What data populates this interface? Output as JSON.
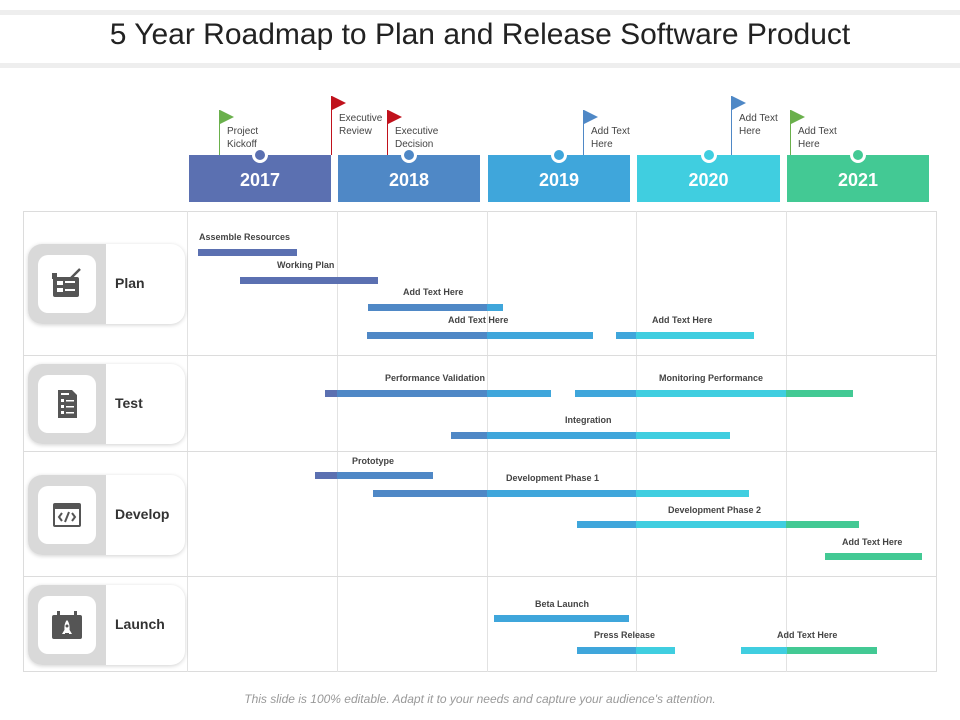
{
  "title": "5 Year Roadmap to Plan and Release Software Product",
  "colors": {
    "2017": "#5b70b1",
    "2018": "#4f88c6",
    "2019": "#3fa6db",
    "2020": "#40cee0",
    "2021": "#43c994",
    "flag_green": "#6ab04c",
    "flag_red": "#c0121c",
    "flag_blue": "#4f88c6"
  },
  "years": [
    "2017",
    "2018",
    "2019",
    "2020",
    "2021"
  ],
  "milestones": [
    {
      "line1": "Project",
      "line2": "Kickoff",
      "color": "flag_green"
    },
    {
      "line1": "Executive",
      "line2": "Review",
      "color": "flag_red"
    },
    {
      "line1": "Executive",
      "line2": "Decision",
      "color": "flag_red"
    },
    {
      "line1": "Add Text",
      "line2": "Here",
      "color": "flag_blue"
    },
    {
      "line1": "Add Text",
      "line2": "Here",
      "color": "flag_blue"
    },
    {
      "line1": "Add Text",
      "line2": "Here",
      "color": "flag_green"
    }
  ],
  "categories": [
    {
      "label": "Plan",
      "icon": "planning-board-icon"
    },
    {
      "label": "Test",
      "icon": "checklist-document-icon"
    },
    {
      "label": "Develop",
      "icon": "code-window-icon"
    },
    {
      "label": "Launch",
      "icon": "rocket-calendar-icon"
    }
  ],
  "tasks": [
    {
      "category": "Plan",
      "label": "Assemble Resources",
      "start": "2017-01",
      "end": "2017-08"
    },
    {
      "category": "Plan",
      "label": "Working Plan",
      "start": "2017-05",
      "end": "2018-03"
    },
    {
      "category": "Plan",
      "label": "Add Text Here",
      "start": "2018-03",
      "end": "2019-01"
    },
    {
      "category": "Plan",
      "label": "Add Text Here",
      "start": "2018-03",
      "end": "2019-08"
    },
    {
      "category": "Plan",
      "label": "Add Text Here",
      "start": "2019-10",
      "end": "2020-10"
    },
    {
      "category": "Test",
      "label": "Performance Validation",
      "start": "2016-12",
      "end": "2019-06"
    },
    {
      "category": "Test",
      "label": "Monitoring Performance",
      "start": "2019-08",
      "end": "2021-06"
    },
    {
      "category": "Test",
      "label": "Integration",
      "start": "2018-09",
      "end": "2020-08"
    },
    {
      "category": "Develop",
      "label": "Prototype",
      "start": "2016-11",
      "end": "2017-09"
    },
    {
      "category": "Develop",
      "label": "Development Phase 1",
      "start": "2018-04",
      "end": "2020-10"
    },
    {
      "category": "Develop",
      "label": "Development Phase 2",
      "start": "2019-08",
      "end": "2021-07"
    },
    {
      "category": "Develop",
      "label": "Add Text Here",
      "start": "2021-04",
      "end": "2022-01"
    },
    {
      "category": "Launch",
      "label": "Beta Launch",
      "start": "2019-01",
      "end": "2020-01"
    },
    {
      "category": "Launch",
      "label": "Press Release",
      "start": "2019-08",
      "end": "2020-04"
    },
    {
      "category": "Launch",
      "label": "Add Text Here",
      "start": "2020-03",
      "end": "2021-07"
    }
  ],
  "footer": "This slide is 100% editable. Adapt it to your needs and capture your audience's attention."
}
